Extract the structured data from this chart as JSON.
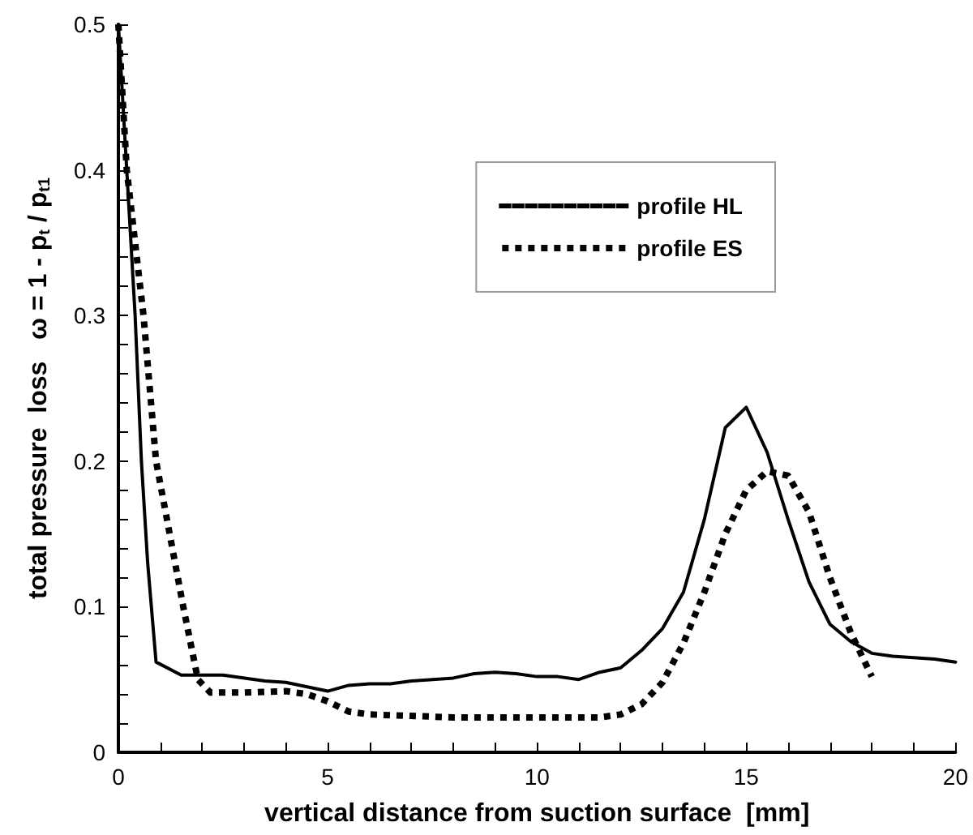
{
  "chart_data": {
    "type": "line",
    "xlabel": "vertical distance from suction surface  [mm]",
    "ylabel": "total pressure  loss   ω = 1 - p$_{t}$ / p$_{t1}$",
    "xlim": [
      0,
      20
    ],
    "ylim": [
      0,
      0.5
    ],
    "xticks": [
      0,
      {
        "value": 1,
        "label": null
      },
      {
        "value": 2,
        "label": null
      },
      {
        "value": 3,
        "label": null
      },
      {
        "value": 4,
        "label": null
      },
      5,
      {
        "value": 6,
        "label": null
      },
      {
        "value": 7,
        "label": null
      },
      {
        "value": 8,
        "label": null
      },
      {
        "value": 9,
        "label": null
      },
      10,
      {
        "value": 11,
        "label": null
      },
      {
        "value": 12,
        "label": null
      },
      {
        "value": 13,
        "label": null
      },
      {
        "value": 14,
        "label": null
      },
      15,
      {
        "value": 16,
        "label": null
      },
      {
        "value": 17,
        "label": null
      },
      {
        "value": 18,
        "label": null
      },
      {
        "value": 19,
        "label": null
      },
      20
    ],
    "yticks": [
      0,
      {
        "value": 0.02,
        "label": null
      },
      {
        "value": 0.04,
        "label": null
      },
      {
        "value": 0.06,
        "label": null
      },
      {
        "value": 0.08,
        "label": null
      },
      0.1,
      {
        "value": 0.12,
        "label": null
      },
      {
        "value": 0.14,
        "label": null
      },
      {
        "value": 0.16,
        "label": null
      },
      {
        "value": 0.18,
        "label": null
      },
      0.2,
      {
        "value": 0.22,
        "label": null
      },
      {
        "value": 0.24,
        "label": null
      },
      {
        "value": 0.26,
        "label": null
      },
      {
        "value": 0.28,
        "label": null
      },
      0.3,
      {
        "value": 0.32,
        "label": null
      },
      {
        "value": 0.34,
        "label": null
      },
      {
        "value": 0.36,
        "label": null
      },
      {
        "value": 0.38,
        "label": null
      },
      0.4,
      {
        "value": 0.42,
        "label": null
      },
      {
        "value": 0.44,
        "label": null
      },
      {
        "value": 0.46,
        "label": null
      },
      {
        "value": 0.48,
        "label": null
      },
      0.5
    ],
    "grid": false,
    "legend": "top right",
    "marker": "none",
    "series": [
      {
        "name": "profile HL",
        "color": "#000000",
        "line_style": "solid",
        "x": [
          0,
          0.2,
          0.4,
          0.55,
          0.7,
          0.9,
          1.5,
          2.5,
          3.5,
          4,
          5,
          5.5,
          6,
          6.5,
          7,
          8,
          8.5,
          9,
          9.5,
          10,
          10.5,
          11,
          11.5,
          12,
          12.5,
          13,
          13.5,
          14,
          14.5,
          15,
          15.5,
          16,
          16.5,
          17,
          17.5,
          18,
          18.5,
          19,
          19.5,
          20
        ],
        "values": [
          0.5,
          0.4,
          0.3,
          0.2,
          0.13,
          0.062,
          0.053,
          0.053,
          0.049,
          0.048,
          0.042,
          0.046,
          0.047,
          0.047,
          0.049,
          0.051,
          0.054,
          0.055,
          0.054,
          0.052,
          0.052,
          0.05,
          0.055,
          0.058,
          0.07,
          0.085,
          0.11,
          0.16,
          0.223,
          0.237,
          0.206,
          0.16,
          0.117,
          0.088,
          0.076,
          0.068,
          0.066,
          0.065,
          0.064,
          0.062
        ]
      },
      {
        "name": "profile ES",
        "color": "#000000",
        "line_style": "dotted",
        "x": [
          0,
          0.2,
          0.6,
          0.9,
          1.55,
          1.9,
          2.2,
          3,
          4,
          4.5,
          5,
          5.5,
          6,
          7,
          8,
          9,
          10,
          11,
          11.5,
          12,
          12.5,
          13,
          13.5,
          14,
          14.5,
          15,
          15.5,
          16,
          16.5,
          17,
          17.5,
          18
        ],
        "values": [
          0.5,
          0.4,
          0.3,
          0.2,
          0.1,
          0.05,
          0.041,
          0.041,
          0.042,
          0.04,
          0.035,
          0.028,
          0.026,
          0.025,
          0.024,
          0.024,
          0.024,
          0.024,
          0.024,
          0.026,
          0.033,
          0.048,
          0.075,
          0.11,
          0.15,
          0.18,
          0.193,
          0.19,
          0.165,
          0.12,
          0.082,
          0.052
        ]
      }
    ]
  }
}
